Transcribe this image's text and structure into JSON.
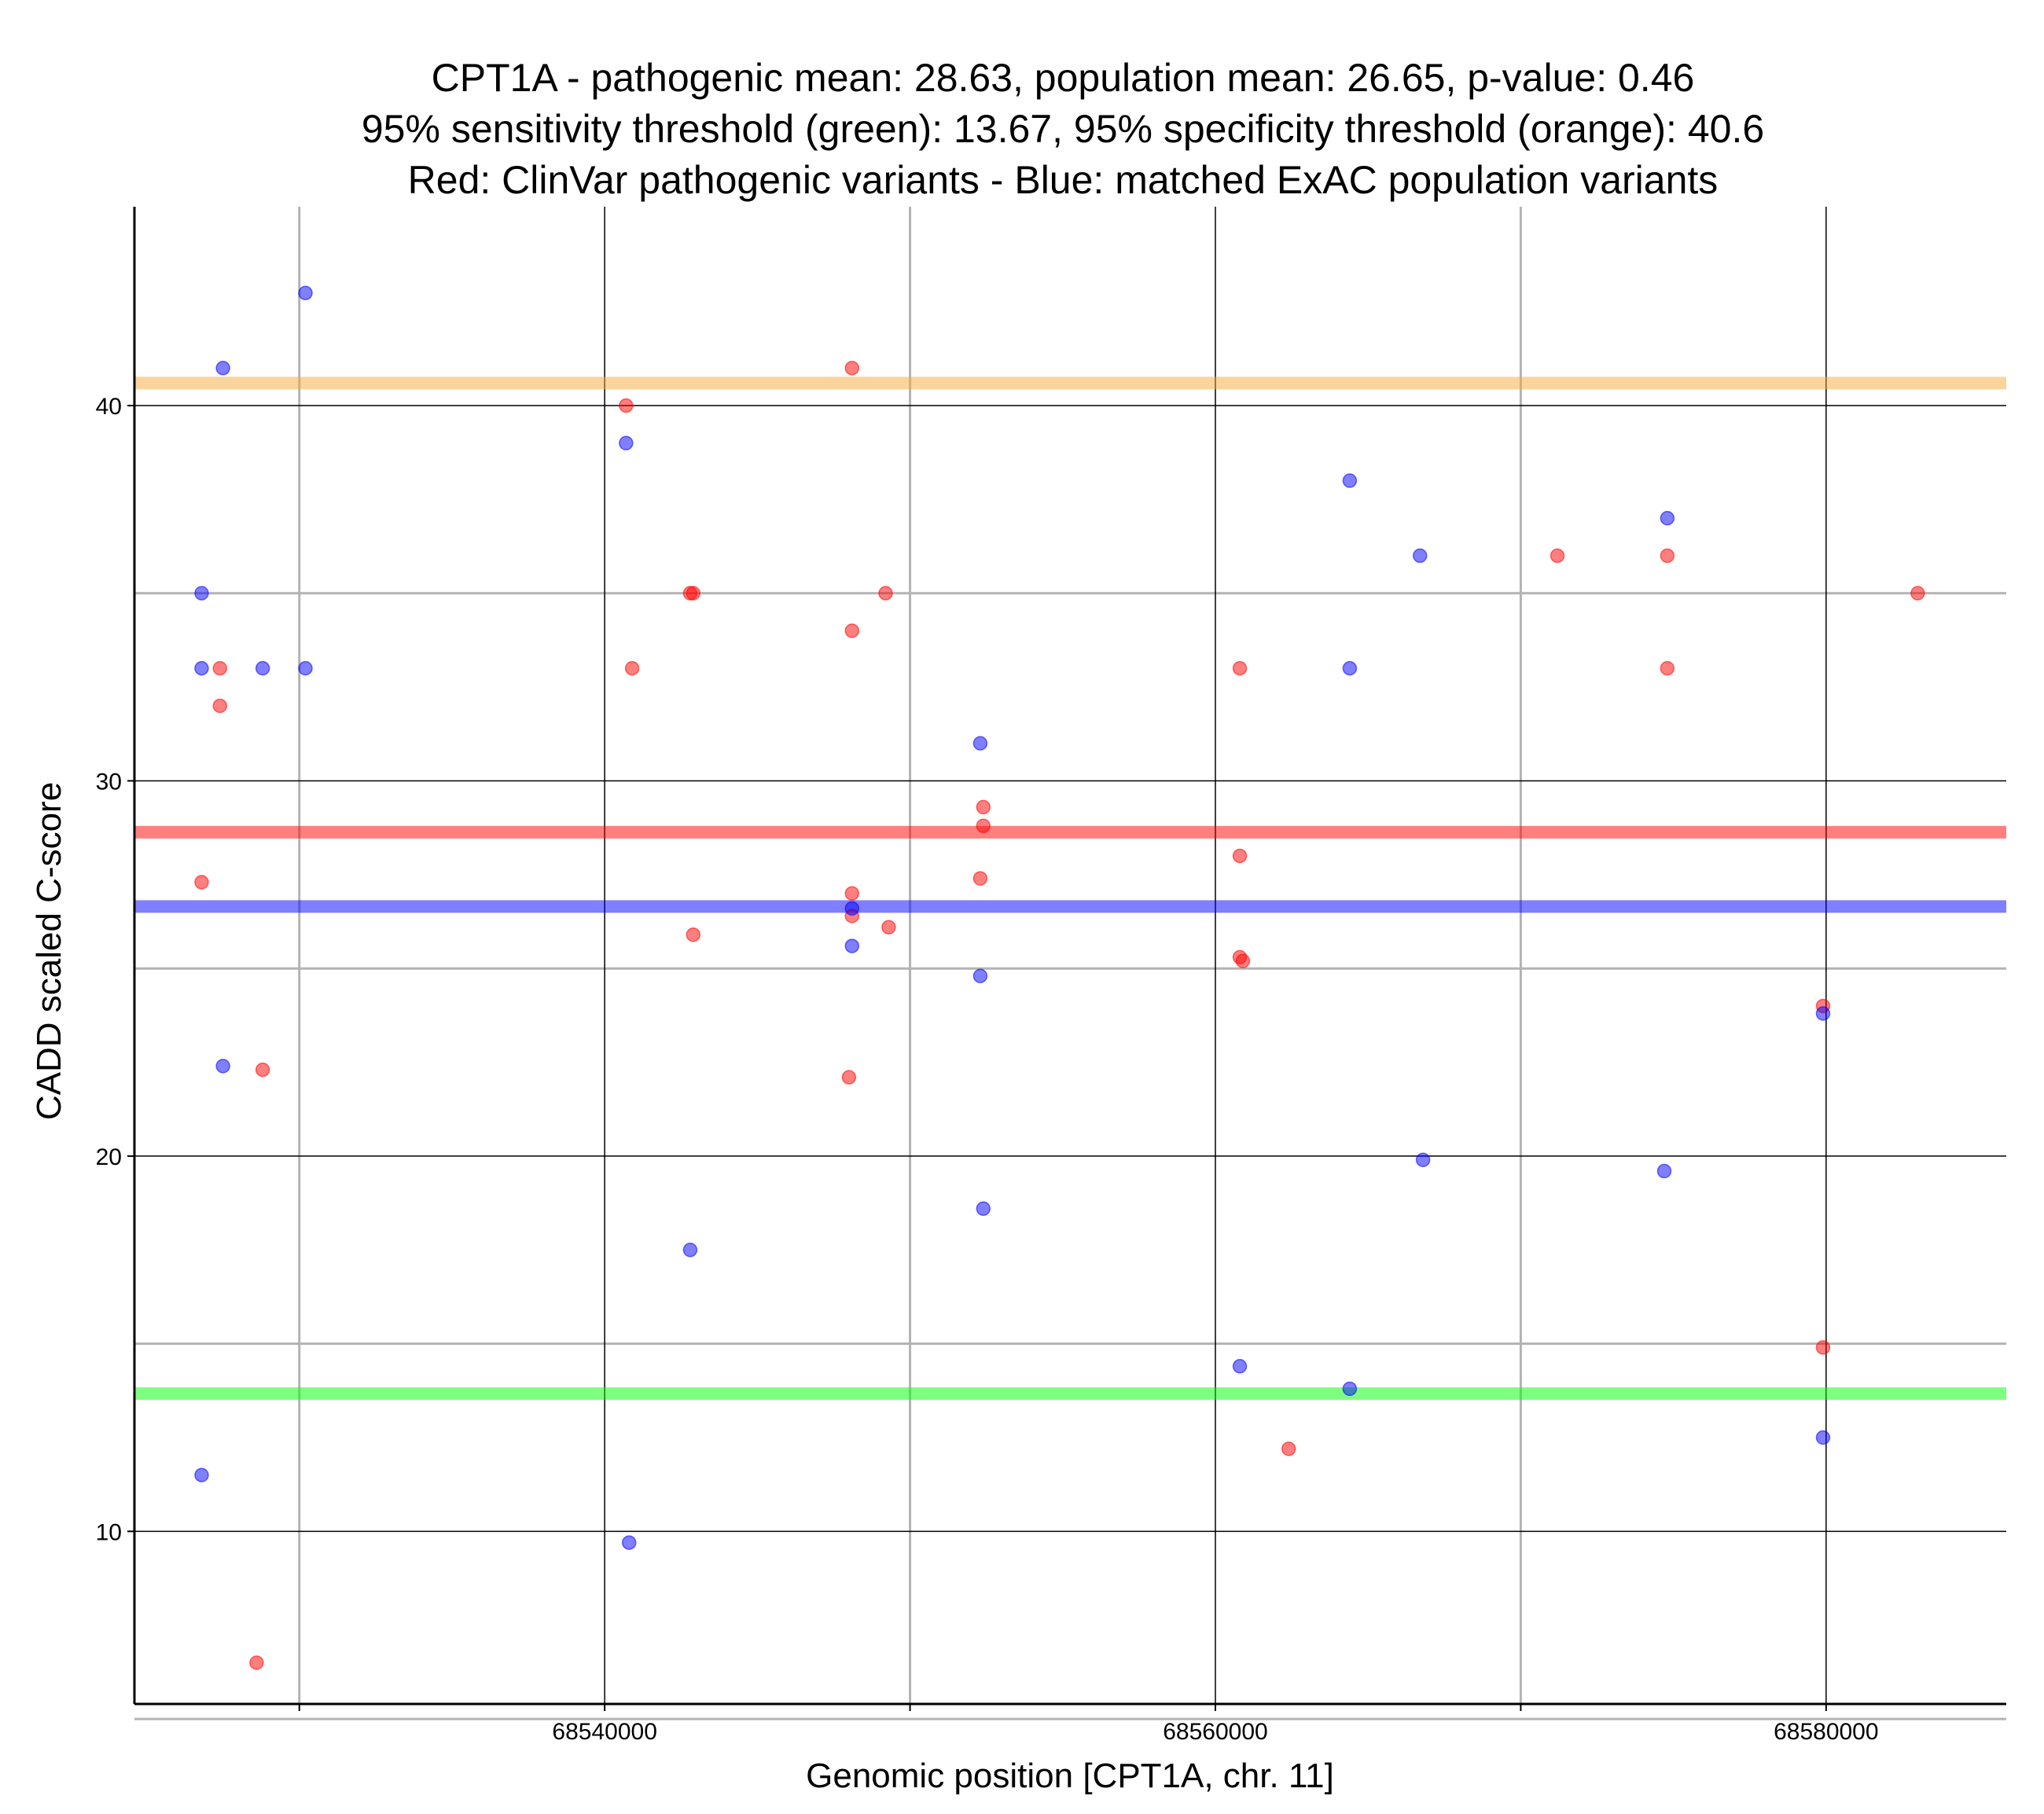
{
  "chart_data": {
    "type": "scatter",
    "title_lines": [
      "CPT1A - pathogenic mean: 28.63, population mean: 26.65, p-value: 0.46",
      "95% sensitivity threshold (green): 13.67, 95% specificity threshold (orange): 40.6",
      "Red: ClinVar pathogenic variants - Blue: matched ExAC population variants"
    ],
    "xlabel": "Genomic position [CPT1A, chr. 11]",
    "ylabel": "CADD scaled C-score",
    "xlim": [
      68524600,
      68585900
    ],
    "ylim": [
      5.4,
      45.3
    ],
    "x_major_ticks": [
      68540000,
      68560000,
      68580000
    ],
    "x_minor_ticks": [
      68530000,
      68550000,
      68570000
    ],
    "x_tick_labels": [
      "68540000",
      "68560000",
      "68580000"
    ],
    "y_major_ticks": [
      10,
      20,
      30,
      40
    ],
    "y_minor_ticks": [
      5,
      15,
      25,
      35
    ],
    "y_tick_labels": [
      "10",
      "20",
      "30",
      "40"
    ],
    "hlines": [
      {
        "name": "specificity-threshold",
        "value": 40.6,
        "color": "#f7a83a"
      },
      {
        "name": "pathogenic-mean",
        "value": 28.63,
        "color": "#ff0000"
      },
      {
        "name": "population-mean",
        "value": 26.65,
        "color": "#0000ff"
      },
      {
        "name": "sensitivity-threshold",
        "value": 13.67,
        "color": "#00ff00"
      }
    ],
    "series": [
      {
        "name": "ClinVar pathogenic variants",
        "color": "#ff0000",
        "points": [
          [
            68527400,
            33
          ],
          [
            68527400,
            32
          ],
          [
            68526800,
            27.3
          ],
          [
            68528800,
            22.3
          ],
          [
            68528600,
            6.5
          ],
          [
            68540700,
            40
          ],
          [
            68540900,
            33
          ],
          [
            68542800,
            35
          ],
          [
            68542900,
            35
          ],
          [
            68542900,
            25.9
          ],
          [
            68548100,
            41
          ],
          [
            68548100,
            34
          ],
          [
            68548100,
            27
          ],
          [
            68548100,
            26.4
          ],
          [
            68548000,
            22.1
          ],
          [
            68549200,
            35
          ],
          [
            68549300,
            26.1
          ],
          [
            68552400,
            29.3
          ],
          [
            68552400,
            28.8
          ],
          [
            68552300,
            27.4
          ],
          [
            68560800,
            33
          ],
          [
            68560800,
            28
          ],
          [
            68560800,
            25.3
          ],
          [
            68560900,
            25.2
          ],
          [
            68562400,
            12.2
          ],
          [
            68571200,
            36
          ],
          [
            68574800,
            36
          ],
          [
            68574800,
            33
          ],
          [
            68583000,
            35
          ],
          [
            68579900,
            24
          ],
          [
            68579900,
            14.9
          ]
        ]
      },
      {
        "name": "matched ExAC population variants",
        "color": "#0000ff",
        "points": [
          [
            68530200,
            43
          ],
          [
            68527500,
            41
          ],
          [
            68526800,
            35
          ],
          [
            68526800,
            33
          ],
          [
            68528800,
            33
          ],
          [
            68530200,
            33
          ],
          [
            68527500,
            22.4
          ],
          [
            68526800,
            11.5
          ],
          [
            68540700,
            39
          ],
          [
            68540800,
            9.7
          ],
          [
            68542800,
            17.5
          ],
          [
            68548100,
            26.6
          ],
          [
            68548100,
            25.6
          ],
          [
            68552300,
            31
          ],
          [
            68552300,
            24.8
          ],
          [
            68552400,
            18.6
          ],
          [
            68564400,
            38
          ],
          [
            68564400,
            33
          ],
          [
            68566700,
            36
          ],
          [
            68566800,
            19.9
          ],
          [
            68574800,
            37
          ],
          [
            68574700,
            19.6
          ],
          [
            68560800,
            14.4
          ],
          [
            68564400,
            13.8
          ],
          [
            68579900,
            23.8
          ],
          [
            68579900,
            12.5
          ]
        ]
      }
    ]
  }
}
